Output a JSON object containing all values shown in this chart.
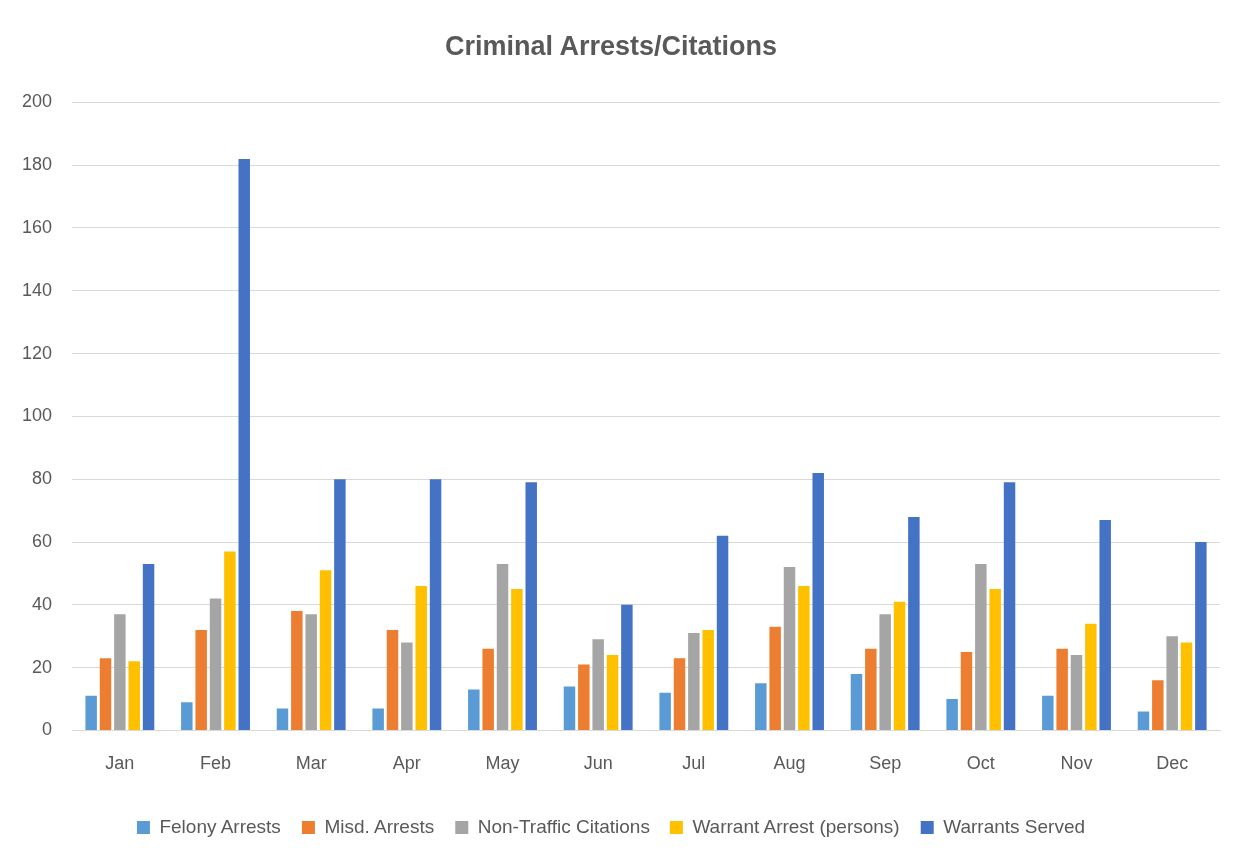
{
  "chart_data": {
    "type": "bar",
    "title": "Criminal Arrests/Citations",
    "categories": [
      "Jan",
      "Feb",
      "Mar",
      "Apr",
      "May",
      "Jun",
      "Jul",
      "Aug",
      "Sep",
      "Oct",
      "Nov",
      "Dec"
    ],
    "series": [
      {
        "name": "Felony Arrests",
        "color": "#5b9bd5",
        "values": [
          11,
          9,
          7,
          7,
          13,
          14,
          12,
          15,
          18,
          10,
          11,
          6
        ]
      },
      {
        "name": "Misd. Arrests",
        "color": "#ed7d31",
        "values": [
          23,
          32,
          38,
          32,
          26,
          21,
          23,
          33,
          26,
          25,
          26,
          16
        ]
      },
      {
        "name": "Non-Traffic Citations",
        "color": "#a5a5a5",
        "values": [
          37,
          42,
          37,
          28,
          53,
          29,
          31,
          52,
          37,
          53,
          24,
          30
        ]
      },
      {
        "name": "Warrant Arrest (persons)",
        "color": "#ffc000",
        "values": [
          22,
          57,
          51,
          46,
          45,
          24,
          32,
          46,
          41,
          45,
          34,
          28
        ]
      },
      {
        "name": "Warrants Served",
        "color": "#4472c4",
        "values": [
          53,
          182,
          80,
          80,
          79,
          40,
          62,
          82,
          68,
          79,
          67,
          60
        ]
      }
    ],
    "ylim": [
      0,
      200
    ],
    "yticks": [
      0,
      20,
      40,
      60,
      80,
      100,
      120,
      140,
      160,
      180,
      200
    ],
    "grid": "y",
    "legend": "bottom"
  }
}
